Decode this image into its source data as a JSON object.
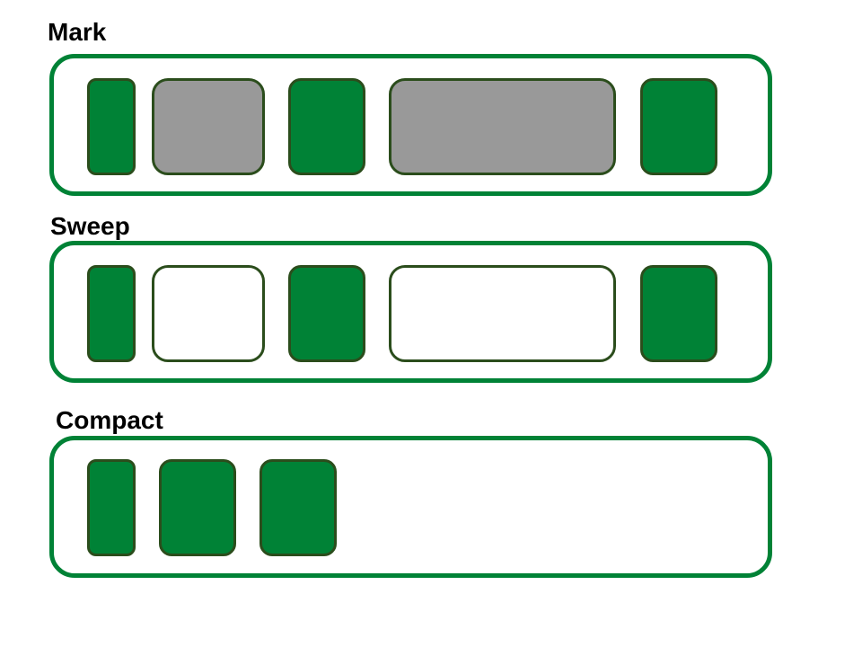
{
  "phases": {
    "mark": {
      "label": "Mark",
      "blocks": [
        "live",
        "garbage",
        "live",
        "garbage",
        "live"
      ]
    },
    "sweep": {
      "label": "Sweep",
      "blocks": [
        "live",
        "free",
        "live",
        "free",
        "live"
      ]
    },
    "compact": {
      "label": "Compact",
      "blocks": [
        "live",
        "live",
        "live"
      ]
    }
  },
  "colors": {
    "heap_border": "#008236",
    "live_object": "#008236",
    "garbage_object": "#999999",
    "free_space": "#ffffff",
    "block_border": "#2b4d1c"
  }
}
